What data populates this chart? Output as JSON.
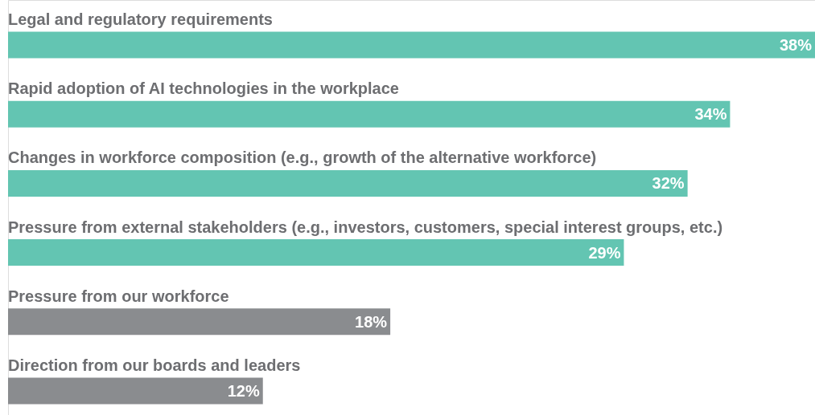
{
  "chart_data": {
    "type": "bar",
    "orientation": "horizontal",
    "categories": [
      "Legal and regulatory requirements",
      "Rapid adoption of AI technologies in the workplace",
      "Changes in workforce composition (e.g., growth of the alternative workforce)",
      "Pressure from external stakeholders (e.g., investors, customers, special interest groups, etc.)",
      "Pressure from our workforce",
      "Direction from our boards and leaders"
    ],
    "values": [
      38,
      34,
      32,
      29,
      18,
      12
    ],
    "colors": [
      "#63c5b2",
      "#63c5b2",
      "#63c5b2",
      "#63c5b2",
      "#8a8c8f",
      "#8a8c8f"
    ],
    "value_labels": [
      "38%",
      "34%",
      "32%",
      "29%",
      "18%",
      "12%"
    ]
  }
}
